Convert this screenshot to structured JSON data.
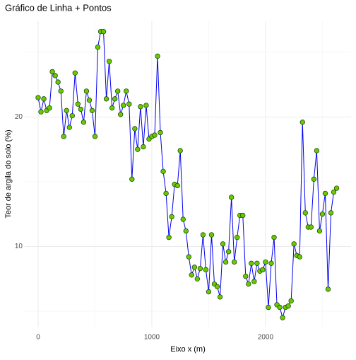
{
  "chart_data": {
    "type": "line_points",
    "title": "Gráfico de Linha + Pontos",
    "xlabel": "Eixo x (m)",
    "ylabel": "Teor de argila do solo (%)",
    "x": [
      0,
      25,
      50,
      75,
      100,
      125,
      150,
      175,
      200,
      225,
      250,
      275,
      300,
      325,
      350,
      375,
      400,
      425,
      450,
      475,
      500,
      525,
      550,
      575,
      600,
      625,
      650,
      675,
      700,
      725,
      750,
      775,
      800,
      825,
      850,
      875,
      900,
      925,
      950,
      975,
      1000,
      1025,
      1050,
      1075,
      1100,
      1125,
      1150,
      1175,
      1200,
      1225,
      1250,
      1275,
      1300,
      1325,
      1350,
      1375,
      1400,
      1425,
      1450,
      1475,
      1500,
      1525,
      1550,
      1575,
      1600,
      1625,
      1650,
      1675,
      1700,
      1725,
      1750,
      1775,
      1800,
      1825,
      1850,
      1875,
      1900,
      1925,
      1950,
      1975,
      2000,
      2025,
      2050,
      2075,
      2100,
      2125,
      2150,
      2175,
      2200,
      2225,
      2250,
      2275,
      2300,
      2325,
      2350,
      2375,
      2400,
      2425,
      2450,
      2475,
      2500,
      2525,
      2550,
      2575,
      2600,
      2625
    ],
    "values": [
      21.5,
      20.4,
      21.4,
      20.5,
      20.7,
      23.5,
      23.2,
      22.7,
      22.0,
      18.5,
      20.5,
      19.2,
      20.1,
      23.4,
      21.0,
      20.6,
      19.6,
      22.0,
      21.3,
      20.5,
      18.5,
      25.4,
      26.6,
      26.6,
      21.4,
      24.3,
      20.7,
      21.4,
      22.0,
      20.2,
      20.9,
      22.0,
      21.0,
      15.2,
      19.1,
      17.5,
      20.8,
      17.7,
      20.9,
      18.3,
      18.5,
      18.6,
      24.7,
      18.8,
      15.8,
      14.1,
      10.7,
      12.3,
      14.8,
      14.7,
      17.4,
      12.1,
      11.2,
      9.2,
      7.8,
      8.4,
      7.5,
      8.3,
      10.9,
      8.2,
      6.5,
      10.9,
      7.1,
      6.9,
      6.1,
      10.2,
      8.8,
      9.6,
      13.8,
      8.8,
      10.7,
      12.4,
      12.4,
      7.7,
      7.1,
      8.7,
      7.3,
      8.7,
      8.1,
      8.2,
      8.8,
      5.3,
      8.7,
      10.7,
      5.5,
      5.3,
      4.5,
      5.3,
      5.4,
      5.8,
      10.2,
      9.3,
      9.2,
      19.6,
      12.6,
      11.5,
      11.5,
      15.2,
      17.4,
      11.2,
      12.5,
      14.1,
      6.7,
      12.6,
      14.2,
      14.5
    ],
    "line_color": "#0000ee",
    "point_color": "#66cc00",
    "point_edge": "#1a3300",
    "xlim": [
      -118,
      2752
    ],
    "xticks": [
      0,
      1000,
      2000
    ],
    "xgrid_minor": [
      500,
      1500,
      2500
    ],
    "ylim": [
      3.8,
      27.4
    ],
    "yticks": [
      10,
      20
    ],
    "ygrid_minor": [
      5,
      15,
      25
    ],
    "grid": true
  }
}
